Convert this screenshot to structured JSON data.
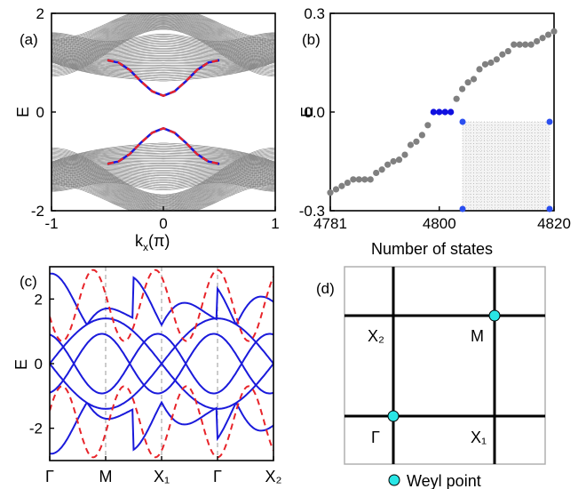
{
  "chart_data": [
    {
      "type": "line",
      "panel_label": "(a)",
      "xlabel": "k",
      "xlabel_sub": "x",
      "xlabel_suffix": "(π)",
      "ylabel": "E",
      "xlim": [
        -1,
        1
      ],
      "ylim": [
        -2,
        2
      ],
      "xticks": [
        -1,
        0,
        1
      ],
      "xtick_labels": [
        "-1",
        "0",
        "1"
      ],
      "yticks": [
        -2,
        0,
        2
      ],
      "ytick_labels": [
        "-2",
        "0",
        "2"
      ],
      "colors": {
        "bulk": "#888888",
        "edge_blue": "#1a1adb",
        "edge_red": "#e8242a"
      },
      "series": [
        {
          "role": "upper edge band (blue solid)",
          "x": [
            -0.5,
            -0.4,
            -0.3,
            -0.2,
            -0.1,
            0.0,
            0.1,
            0.2,
            0.3,
            0.4,
            0.5
          ],
          "values": [
            1.05,
            1.0,
            0.85,
            0.62,
            0.42,
            0.33,
            0.42,
            0.62,
            0.85,
            1.0,
            1.05
          ]
        },
        {
          "role": "lower edge band (blue solid)",
          "x": [
            -0.5,
            -0.4,
            -0.3,
            -0.2,
            -0.1,
            0.0,
            0.1,
            0.2,
            0.3,
            0.4,
            0.5
          ],
          "values": [
            -1.05,
            -1.0,
            -0.85,
            -0.62,
            -0.42,
            -0.33,
            -0.42,
            -0.62,
            -0.85,
            -1.0,
            -1.05
          ]
        }
      ]
    },
    {
      "type": "scatter",
      "panel_label": "(b)",
      "xlabel": "Number of states",
      "ylabel": "E",
      "xlim": [
        4781,
        4820
      ],
      "ylim": [
        -0.3,
        0.3
      ],
      "xticks": [
        4781,
        4800,
        4820
      ],
      "xtick_labels": [
        "4781",
        "4800",
        "4820"
      ],
      "yticks": [
        -0.3,
        0.0,
        0.3
      ],
      "ytick_labels": [
        "-0.3",
        "0.0",
        "0.3"
      ],
      "colors": {
        "bulk": "#808080",
        "zero_modes": "#1010e0",
        "inset": "#aaaaaa",
        "inset_corner": "#2a4ef0"
      },
      "series": [
        {
          "role": "bulk states (gray)",
          "x": [
            4781,
            4782,
            4783,
            4784,
            4785,
            4786,
            4787,
            4788,
            4789,
            4790,
            4791,
            4792,
            4793,
            4794,
            4795,
            4796,
            4797,
            4798
          ],
          "values": [
            -0.245,
            -0.235,
            -0.225,
            -0.215,
            -0.205,
            -0.205,
            -0.205,
            -0.205,
            -0.185,
            -0.175,
            -0.16,
            -0.15,
            -0.145,
            -0.13,
            -0.1,
            -0.09,
            -0.07,
            -0.04
          ]
        },
        {
          "role": "zero-energy corner states (blue)",
          "x": [
            4799,
            4800,
            4801,
            4802
          ],
          "values": [
            0.0,
            0.0,
            0.0,
            0.0
          ]
        },
        {
          "role": "bulk states (gray)",
          "x": [
            4803,
            4804,
            4805,
            4806,
            4807,
            4808,
            4809,
            4810,
            4811,
            4812,
            4813,
            4814,
            4815,
            4816,
            4817,
            4818,
            4819,
            4820
          ],
          "values": [
            0.04,
            0.07,
            0.09,
            0.1,
            0.13,
            0.145,
            0.15,
            0.16,
            0.175,
            0.185,
            0.205,
            0.205,
            0.205,
            0.205,
            0.215,
            0.225,
            0.235,
            0.245
          ]
        }
      ]
    },
    {
      "type": "line",
      "panel_label": "(c)",
      "ylabel": "E",
      "ylim": [
        -3,
        3
      ],
      "yticks": [
        -2,
        0,
        2
      ],
      "ytick_labels": [
        "-2",
        "0",
        "2"
      ],
      "xtick_labels": [
        "Γ",
        "M",
        "X₁",
        "Γ",
        "X₂"
      ],
      "colors": {
        "bands": "#1a1adb",
        "dashed": "#e8242a",
        "divider": "#999999"
      },
      "series": [
        {
          "role": "blue band",
          "x": [
            0,
            0.5,
            1.0,
            1.5,
            2.0,
            2.5,
            3.0
          ],
          "values": [
            0.0,
            1.1,
            1.4,
            1.1,
            0.0,
            -1.1,
            -1.4
          ]
        },
        {
          "role": "blue band",
          "x": [
            0,
            0.5,
            1.0,
            1.5,
            2.0,
            2.5,
            3.0
          ],
          "values": [
            0.0,
            -1.1,
            -1.4,
            -1.1,
            0.0,
            1.1,
            1.4
          ]
        }
      ]
    },
    {
      "type": "diagram",
      "panel_label": "(d)",
      "labels": {
        "x2": "X₂",
        "m": "M",
        "gamma": "Γ",
        "x1": "X₁"
      },
      "legend": "Weyl point",
      "colors": {
        "weyl": "#29e6e6",
        "frame": "#aaaaaa"
      }
    }
  ]
}
